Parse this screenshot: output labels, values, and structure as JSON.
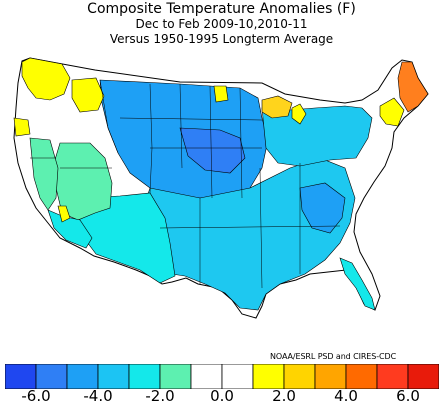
{
  "title": "Composite Temperature Anomalies (F)",
  "subtitle": "Dec to Feb  2009-10,2010-11",
  "subtitle2": "Versus 1950-1995 Longterm Average",
  "credit": "NOAA/ESRL PSD and CIRES-CDC",
  "legend": {
    "colors": [
      "#1f47f0",
      "#2f7ff5",
      "#1ea0f5",
      "#1cc4f3",
      "#14e8ea",
      "#5df0b0",
      "#ffffff",
      "#ffffff",
      "#ffff00",
      "#ffd400",
      "#ffa500",
      "#ff6a00",
      "#ff3b1f",
      "#e81b0b"
    ],
    "ticks": [
      "-6.0",
      "-4.0",
      "-2.0",
      "0.0",
      "2.0",
      "4.0",
      "6.0"
    ]
  },
  "map_regions": {
    "anomaly_colors": {
      "strong_warm": "#ff7f1e",
      "warm": "#ffd41c",
      "slight_warm": "#ffff00",
      "neutral": "#ffffff",
      "slight_cool": "#5df0b0",
      "cool": "#14e8ea",
      "cooler": "#1ec8f0",
      "cold": "#1ea0f5",
      "very_cold": "#2f7ff5"
    }
  }
}
